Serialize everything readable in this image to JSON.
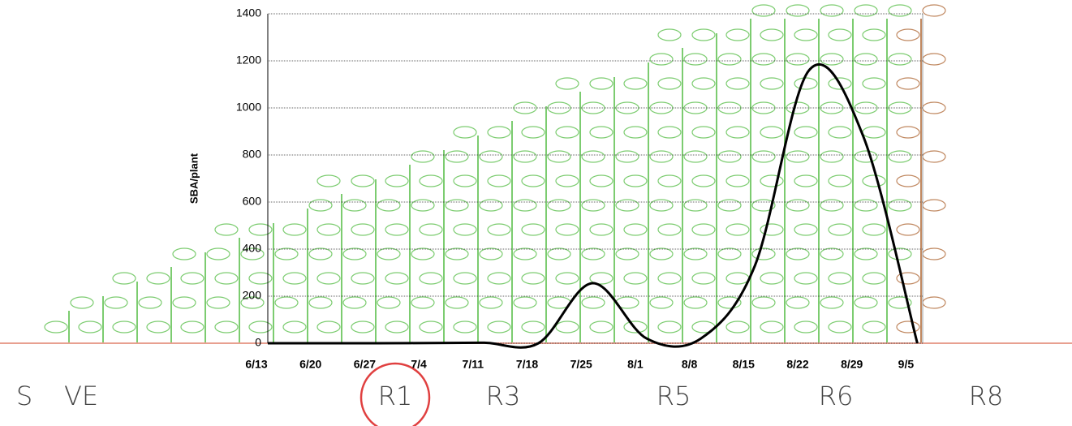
{
  "chart_data": {
    "type": "line",
    "y_label": "SBA/plant",
    "categories": [
      "6/13",
      "6/20",
      "6/27",
      "7/4",
      "7/11",
      "7/18",
      "7/25",
      "8/1",
      "8/8",
      "8/15",
      "8/22",
      "8/29",
      "9/5"
    ],
    "series": [
      {
        "name": "SBA/plant",
        "color": "#000000",
        "values": [
          0,
          0,
          0,
          1,
          2,
          0,
          255,
          20,
          20,
          330,
          1160,
          880,
          0
        ]
      }
    ],
    "ylim": [
      0,
      1400
    ],
    "yticks": [
      0,
      200,
      400,
      600,
      800,
      1000,
      1200,
      1400
    ],
    "grid": true,
    "stages": [
      "S",
      "VE",
      "R1",
      "R3",
      "R5",
      "R6",
      "R8"
    ],
    "highlighted_stage": "R1"
  }
}
